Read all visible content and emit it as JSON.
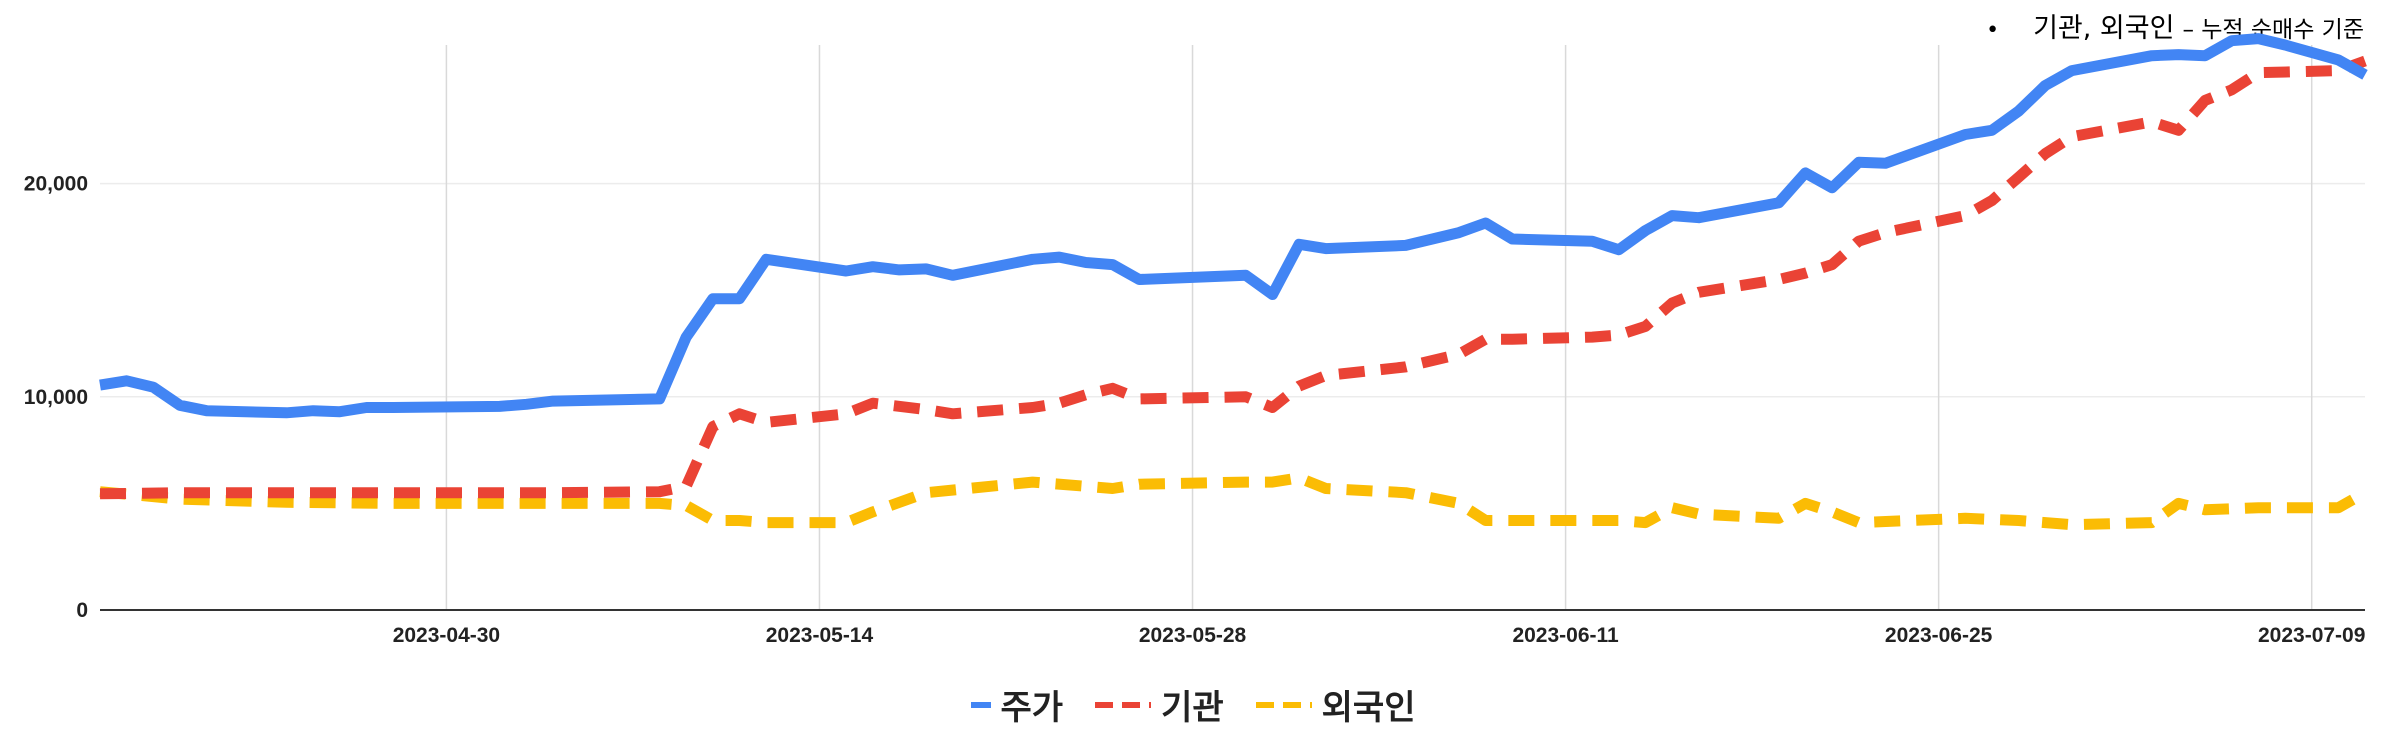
{
  "note": {
    "bullet": "•",
    "main": "기관, 외국인",
    "sub": "– 누적 순매수 기준"
  },
  "colors": {
    "price": "#4285f4",
    "institution": "#ea4335",
    "foreign": "#fbbc04",
    "grid": "#d9d9d9",
    "baseline": "#333333"
  },
  "chart_data": {
    "type": "line",
    "x_label": "",
    "y_label": "",
    "ylim": [
      0,
      26500
    ],
    "yticks": [
      0,
      10000,
      20000
    ],
    "ytick_labels": [
      "0",
      "10,000",
      "20,000"
    ],
    "xticks": [
      "2023-04-30",
      "2023-05-14",
      "2023-05-28",
      "2023-06-11",
      "2023-06-25",
      "2023-07-09"
    ],
    "xlim": [
      "2023-04-17",
      "2023-07-11"
    ],
    "grid": true,
    "legend_position": "bottom",
    "series": [
      {
        "name": "주가",
        "style": "solid",
        "color": "#4285f4",
        "points": [
          [
            "2023-04-17",
            10550
          ],
          [
            "2023-04-18",
            10750
          ],
          [
            "2023-04-19",
            10450
          ],
          [
            "2023-04-20",
            9600
          ],
          [
            "2023-04-21",
            9350
          ],
          [
            "2023-04-24",
            9250
          ],
          [
            "2023-04-25",
            9350
          ],
          [
            "2023-04-26",
            9300
          ],
          [
            "2023-04-27",
            9500
          ],
          [
            "2023-04-28",
            9500
          ],
          [
            "2023-05-02",
            9550
          ],
          [
            "2023-05-03",
            9650
          ],
          [
            "2023-05-04",
            9800
          ],
          [
            "2023-05-08",
            9900
          ],
          [
            "2023-05-09",
            12800
          ],
          [
            "2023-05-10",
            14600
          ],
          [
            "2023-05-11",
            14600
          ],
          [
            "2023-05-12",
            16450
          ],
          [
            "2023-05-15",
            15900
          ],
          [
            "2023-05-16",
            16100
          ],
          [
            "2023-05-17",
            15950
          ],
          [
            "2023-05-18",
            16000
          ],
          [
            "2023-05-19",
            15700
          ],
          [
            "2023-05-22",
            16450
          ],
          [
            "2023-05-23",
            16550
          ],
          [
            "2023-05-24",
            16300
          ],
          [
            "2023-05-25",
            16200
          ],
          [
            "2023-05-26",
            15500
          ],
          [
            "2023-05-30",
            15700
          ],
          [
            "2023-05-31",
            14800
          ],
          [
            "2023-06-01",
            17150
          ],
          [
            "2023-06-02",
            16950
          ],
          [
            "2023-06-05",
            17100
          ],
          [
            "2023-06-07",
            17700
          ],
          [
            "2023-06-08",
            18150
          ],
          [
            "2023-06-09",
            17400
          ],
          [
            "2023-06-12",
            17300
          ],
          [
            "2023-06-13",
            16900
          ],
          [
            "2023-06-14",
            17800
          ],
          [
            "2023-06-15",
            18500
          ],
          [
            "2023-06-16",
            18400
          ],
          [
            "2023-06-19",
            19100
          ],
          [
            "2023-06-20",
            20500
          ],
          [
            "2023-06-21",
            19800
          ],
          [
            "2023-06-22",
            21000
          ],
          [
            "2023-06-23",
            20950
          ],
          [
            "2023-06-26",
            22300
          ],
          [
            "2023-06-27",
            22500
          ],
          [
            "2023-06-28",
            23400
          ],
          [
            "2023-06-29",
            24600
          ],
          [
            "2023-06-30",
            25300
          ],
          [
            "2023-07-03",
            26000
          ],
          [
            "2023-07-04",
            26050
          ],
          [
            "2023-07-05",
            26000
          ],
          [
            "2023-07-06",
            26700
          ],
          [
            "2023-07-07",
            26800
          ],
          [
            "2023-07-08",
            26500
          ],
          [
            "2023-07-10",
            25800
          ],
          [
            "2023-07-11",
            25100
          ]
        ]
      },
      {
        "name": "기관",
        "style": "dashed",
        "color": "#ea4335",
        "points": [
          [
            "2023-04-17",
            5450
          ],
          [
            "2023-04-20",
            5500
          ],
          [
            "2023-04-24",
            5500
          ],
          [
            "2023-04-28",
            5500
          ],
          [
            "2023-05-04",
            5500
          ],
          [
            "2023-05-08",
            5550
          ],
          [
            "2023-05-09",
            5800
          ],
          [
            "2023-05-10",
            8600
          ],
          [
            "2023-05-11",
            9200
          ],
          [
            "2023-05-12",
            8800
          ],
          [
            "2023-05-15",
            9200
          ],
          [
            "2023-05-16",
            9700
          ],
          [
            "2023-05-18",
            9400
          ],
          [
            "2023-05-19",
            9200
          ],
          [
            "2023-05-22",
            9500
          ],
          [
            "2023-05-23",
            9700
          ],
          [
            "2023-05-24",
            10100
          ],
          [
            "2023-05-25",
            10400
          ],
          [
            "2023-05-26",
            9900
          ],
          [
            "2023-05-30",
            10000
          ],
          [
            "2023-05-31",
            9500
          ],
          [
            "2023-06-01",
            10500
          ],
          [
            "2023-06-02",
            11000
          ],
          [
            "2023-06-05",
            11400
          ],
          [
            "2023-06-07",
            12000
          ],
          [
            "2023-06-08",
            12700
          ],
          [
            "2023-06-09",
            12700
          ],
          [
            "2023-06-12",
            12800
          ],
          [
            "2023-06-13",
            12900
          ],
          [
            "2023-06-14",
            13300
          ],
          [
            "2023-06-15",
            14400
          ],
          [
            "2023-06-16",
            14900
          ],
          [
            "2023-06-19",
            15500
          ],
          [
            "2023-06-20",
            15800
          ],
          [
            "2023-06-21",
            16200
          ],
          [
            "2023-06-22",
            17300
          ],
          [
            "2023-06-23",
            17700
          ],
          [
            "2023-06-26",
            18500
          ],
          [
            "2023-06-27",
            19200
          ],
          [
            "2023-06-28",
            20300
          ],
          [
            "2023-06-29",
            21400
          ],
          [
            "2023-06-30",
            22200
          ],
          [
            "2023-07-03",
            22900
          ],
          [
            "2023-07-04",
            22500
          ],
          [
            "2023-07-05",
            23900
          ],
          [
            "2023-07-06",
            24400
          ],
          [
            "2023-07-07",
            25200
          ],
          [
            "2023-07-10",
            25300
          ],
          [
            "2023-07-11",
            25750
          ]
        ]
      },
      {
        "name": "외국인",
        "style": "dashed",
        "color": "#fbbc04",
        "points": [
          [
            "2023-04-17",
            5550
          ],
          [
            "2023-04-20",
            5200
          ],
          [
            "2023-04-24",
            5050
          ],
          [
            "2023-04-28",
            5000
          ],
          [
            "2023-05-04",
            5000
          ],
          [
            "2023-05-08",
            5000
          ],
          [
            "2023-05-09",
            4900
          ],
          [
            "2023-05-10",
            4200
          ],
          [
            "2023-05-11",
            4200
          ],
          [
            "2023-05-12",
            4100
          ],
          [
            "2023-05-15",
            4100
          ],
          [
            "2023-05-16",
            4600
          ],
          [
            "2023-05-18",
            5500
          ],
          [
            "2023-05-22",
            6000
          ],
          [
            "2023-05-24",
            5800
          ],
          [
            "2023-05-25",
            5700
          ],
          [
            "2023-05-26",
            5900
          ],
          [
            "2023-05-30",
            6000
          ],
          [
            "2023-05-31",
            6000
          ],
          [
            "2023-06-01",
            6200
          ],
          [
            "2023-06-02",
            5700
          ],
          [
            "2023-06-05",
            5500
          ],
          [
            "2023-06-07",
            5000
          ],
          [
            "2023-06-08",
            4200
          ],
          [
            "2023-06-09",
            4200
          ],
          [
            "2023-06-13",
            4200
          ],
          [
            "2023-06-14",
            4100
          ],
          [
            "2023-06-15",
            4800
          ],
          [
            "2023-06-16",
            4500
          ],
          [
            "2023-06-19",
            4300
          ],
          [
            "2023-06-20",
            5000
          ],
          [
            "2023-06-21",
            4600
          ],
          [
            "2023-06-22",
            4100
          ],
          [
            "2023-06-26",
            4300
          ],
          [
            "2023-06-28",
            4200
          ],
          [
            "2023-06-30",
            4000
          ],
          [
            "2023-07-03",
            4100
          ],
          [
            "2023-07-04",
            5000
          ],
          [
            "2023-07-05",
            4700
          ],
          [
            "2023-07-07",
            4800
          ],
          [
            "2023-07-10",
            4800
          ],
          [
            "2023-07-11",
            5500
          ]
        ]
      }
    ]
  }
}
